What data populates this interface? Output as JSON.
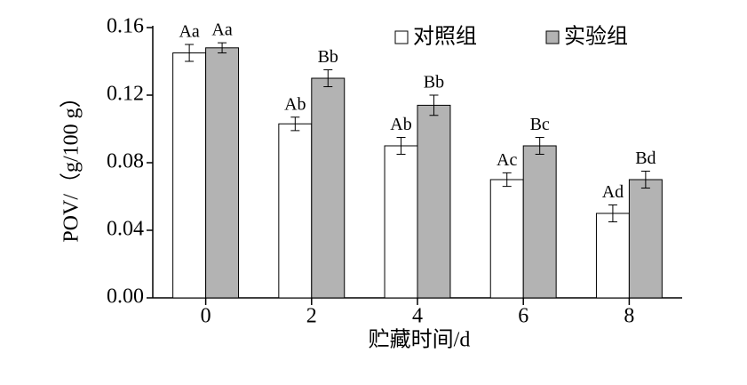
{
  "chart_data": {
    "type": "bar",
    "x_label": "贮藏时间/d",
    "y_label": "POV/（g/100 g）",
    "x": [
      0,
      2,
      4,
      6,
      8
    ],
    "xlim": [
      -1,
      9
    ],
    "xticks": [
      0,
      2,
      4,
      6,
      8
    ],
    "ylim": [
      0,
      0.16
    ],
    "yticks": [
      {
        "value": 0,
        "label": "0.00"
      },
      {
        "value": 0.04,
        "label": "0.04"
      },
      {
        "value": 0.08,
        "label": "0.08"
      },
      {
        "value": 0.12,
        "label": "0.12"
      },
      {
        "value": 0.16,
        "label": "0.16"
      }
    ],
    "legend": "upper right",
    "series": [
      {
        "name": "对照组",
        "color": "#ffffff",
        "values": [
          0.145,
          0.103,
          0.09,
          0.07,
          0.05
        ],
        "errors": [
          0.005,
          0.004,
          0.005,
          0.004,
          0.005
        ],
        "annotations": [
          "Aa",
          "Ab",
          "Ab",
          "Ac",
          "Ad"
        ]
      },
      {
        "name": "实验组",
        "color": "#b3b3b3",
        "values": [
          0.148,
          0.13,
          0.114,
          0.09,
          0.07
        ],
        "errors": [
          0.003,
          0.005,
          0.006,
          0.005,
          0.005
        ],
        "annotations": [
          "Aa",
          "Bb",
          "Bb",
          "Bc",
          "Bd"
        ]
      }
    ]
  }
}
